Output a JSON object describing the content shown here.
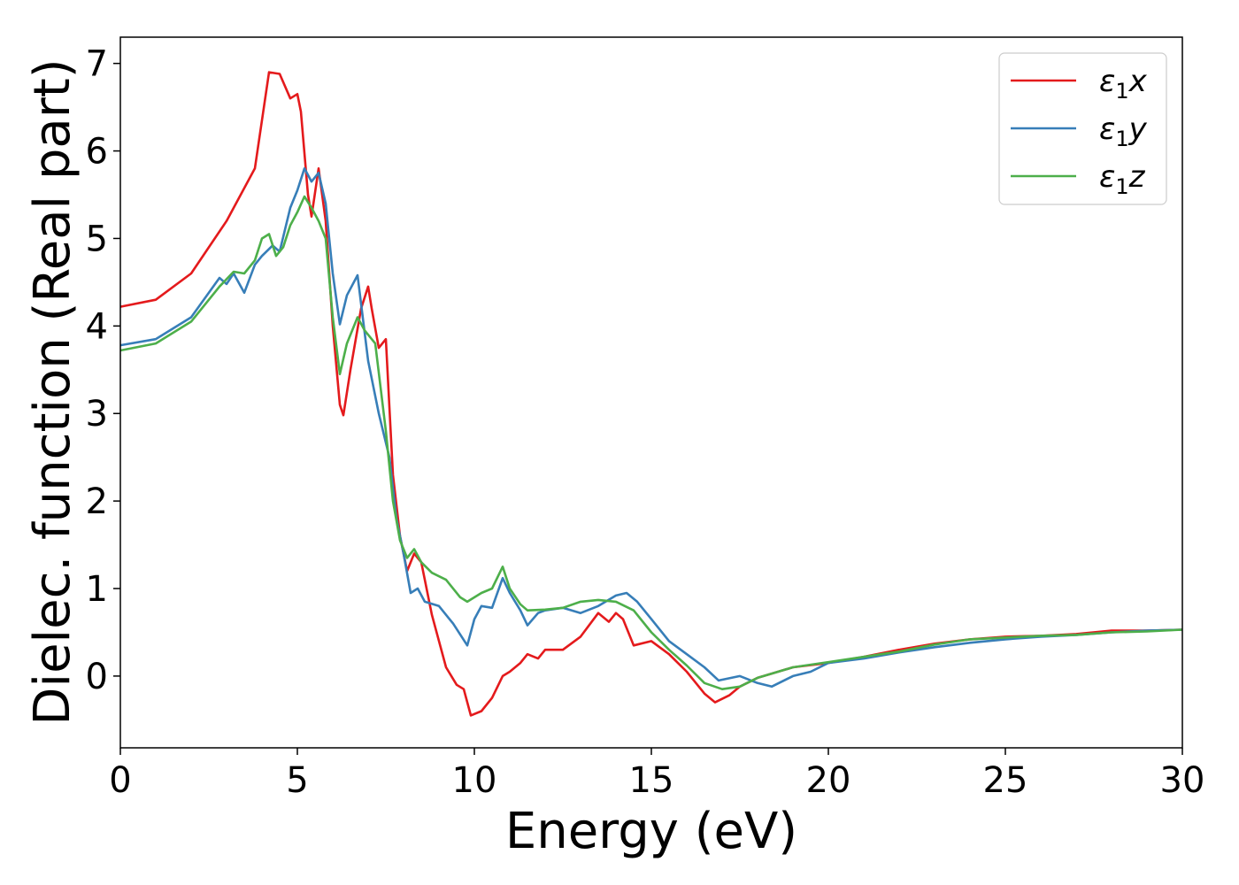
{
  "chart_data": {
    "type": "line",
    "xlabel": "Energy (eV)",
    "ylabel": "Dielec. function (Real part)",
    "xlim": [
      0,
      30
    ],
    "ylim": [
      -0.82,
      7.3
    ],
    "xticks": [
      0,
      5,
      10,
      15,
      20,
      25,
      30
    ],
    "yticks": [
      0,
      1,
      2,
      3,
      4,
      5,
      6,
      7
    ],
    "grid": false,
    "legend_position": "top-right",
    "series": [
      {
        "name": "ε₁x",
        "legend_base": "ε",
        "legend_sub": "1",
        "legend_var": "x",
        "color": "#e41a1c",
        "points": [
          [
            0,
            4.22
          ],
          [
            1,
            4.3
          ],
          [
            2,
            4.6
          ],
          [
            3,
            5.2
          ],
          [
            3.8,
            5.8
          ],
          [
            4.2,
            6.9
          ],
          [
            4.5,
            6.88
          ],
          [
            4.8,
            6.6
          ],
          [
            5.0,
            6.65
          ],
          [
            5.1,
            6.45
          ],
          [
            5.3,
            5.5
          ],
          [
            5.4,
            5.25
          ],
          [
            5.6,
            5.8
          ],
          [
            5.8,
            5.2
          ],
          [
            6.0,
            4.0
          ],
          [
            6.2,
            3.1
          ],
          [
            6.3,
            2.98
          ],
          [
            6.5,
            3.5
          ],
          [
            6.8,
            4.2
          ],
          [
            7.0,
            4.45
          ],
          [
            7.1,
            4.2
          ],
          [
            7.3,
            3.75
          ],
          [
            7.5,
            3.85
          ],
          [
            7.7,
            2.3
          ],
          [
            7.9,
            1.6
          ],
          [
            8.1,
            1.2
          ],
          [
            8.3,
            1.4
          ],
          [
            8.5,
            1.3
          ],
          [
            8.8,
            0.7
          ],
          [
            9.2,
            0.1
          ],
          [
            9.5,
            -0.1
          ],
          [
            9.7,
            -0.15
          ],
          [
            9.9,
            -0.45
          ],
          [
            10.2,
            -0.4
          ],
          [
            10.5,
            -0.25
          ],
          [
            10.8,
            0
          ],
          [
            11.0,
            0.05
          ],
          [
            11.3,
            0.15
          ],
          [
            11.5,
            0.25
          ],
          [
            11.8,
            0.2
          ],
          [
            12.0,
            0.3
          ],
          [
            12.5,
            0.3
          ],
          [
            13.0,
            0.45
          ],
          [
            13.5,
            0.72
          ],
          [
            13.8,
            0.62
          ],
          [
            14.0,
            0.72
          ],
          [
            14.2,
            0.65
          ],
          [
            14.5,
            0.35
          ],
          [
            15.0,
            0.4
          ],
          [
            15.5,
            0.25
          ],
          [
            16.0,
            0.05
          ],
          [
            16.5,
            -0.2
          ],
          [
            16.8,
            -0.3
          ],
          [
            17.2,
            -0.22
          ],
          [
            17.5,
            -0.12
          ],
          [
            18,
            -0.02
          ],
          [
            19,
            0.1
          ],
          [
            20,
            0.15
          ],
          [
            21,
            0.22
          ],
          [
            22,
            0.3
          ],
          [
            23,
            0.37
          ],
          [
            24,
            0.42
          ],
          [
            25,
            0.45
          ],
          [
            26,
            0.46
          ],
          [
            27,
            0.48
          ],
          [
            28,
            0.52
          ],
          [
            29,
            0.52
          ],
          [
            30,
            0.53
          ]
        ]
      },
      {
        "name": "ε₁y",
        "legend_base": "ε",
        "legend_sub": "1",
        "legend_var": "y",
        "color": "#377eb8",
        "points": [
          [
            0,
            3.78
          ],
          [
            1,
            3.85
          ],
          [
            2,
            4.1
          ],
          [
            2.8,
            4.55
          ],
          [
            3.0,
            4.48
          ],
          [
            3.2,
            4.6
          ],
          [
            3.5,
            4.38
          ],
          [
            3.8,
            4.7
          ],
          [
            4.0,
            4.8
          ],
          [
            4.3,
            4.92
          ],
          [
            4.5,
            4.85
          ],
          [
            4.8,
            5.35
          ],
          [
            5.0,
            5.55
          ],
          [
            5.2,
            5.8
          ],
          [
            5.4,
            5.65
          ],
          [
            5.6,
            5.75
          ],
          [
            5.8,
            5.4
          ],
          [
            6.0,
            4.6
          ],
          [
            6.2,
            4.02
          ],
          [
            6.4,
            4.35
          ],
          [
            6.7,
            4.58
          ],
          [
            7.0,
            3.6
          ],
          [
            7.3,
            3.0
          ],
          [
            7.6,
            2.5
          ],
          [
            7.8,
            1.8
          ],
          [
            8.0,
            1.4
          ],
          [
            8.2,
            0.95
          ],
          [
            8.4,
            1.0
          ],
          [
            8.6,
            0.85
          ],
          [
            9.0,
            0.8
          ],
          [
            9.4,
            0.6
          ],
          [
            9.8,
            0.35
          ],
          [
            10.0,
            0.65
          ],
          [
            10.2,
            0.8
          ],
          [
            10.5,
            0.78
          ],
          [
            10.8,
            1.12
          ],
          [
            11.0,
            0.95
          ],
          [
            11.3,
            0.75
          ],
          [
            11.5,
            0.58
          ],
          [
            11.8,
            0.72
          ],
          [
            12.0,
            0.75
          ],
          [
            12.5,
            0.78
          ],
          [
            13.0,
            0.72
          ],
          [
            13.5,
            0.8
          ],
          [
            14.0,
            0.92
          ],
          [
            14.3,
            0.95
          ],
          [
            14.6,
            0.85
          ],
          [
            15.0,
            0.65
          ],
          [
            15.5,
            0.4
          ],
          [
            16.0,
            0.25
          ],
          [
            16.5,
            0.1
          ],
          [
            16.9,
            -0.05
          ],
          [
            17.5,
            0
          ],
          [
            18,
            -0.08
          ],
          [
            18.4,
            -0.12
          ],
          [
            19,
            0
          ],
          [
            19.5,
            0.05
          ],
          [
            20,
            0.15
          ],
          [
            21,
            0.2
          ],
          [
            22,
            0.27
          ],
          [
            23,
            0.33
          ],
          [
            24,
            0.38
          ],
          [
            25,
            0.42
          ],
          [
            26,
            0.45
          ],
          [
            27,
            0.47
          ],
          [
            28,
            0.5
          ],
          [
            29,
            0.52
          ],
          [
            30,
            0.53
          ]
        ]
      },
      {
        "name": "ε₁z",
        "legend_base": "ε",
        "legend_sub": "1",
        "legend_var": "z",
        "color": "#4daf4a",
        "points": [
          [
            0,
            3.72
          ],
          [
            1,
            3.8
          ],
          [
            2,
            4.05
          ],
          [
            2.8,
            4.45
          ],
          [
            3.2,
            4.62
          ],
          [
            3.5,
            4.6
          ],
          [
            3.8,
            4.75
          ],
          [
            4.0,
            5.0
          ],
          [
            4.2,
            5.05
          ],
          [
            4.4,
            4.8
          ],
          [
            4.6,
            4.9
          ],
          [
            4.8,
            5.15
          ],
          [
            5.0,
            5.3
          ],
          [
            5.2,
            5.48
          ],
          [
            5.4,
            5.35
          ],
          [
            5.6,
            5.2
          ],
          [
            5.8,
            5.0
          ],
          [
            6.0,
            4.1
          ],
          [
            6.2,
            3.45
          ],
          [
            6.4,
            3.8
          ],
          [
            6.7,
            4.1
          ],
          [
            6.9,
            3.95
          ],
          [
            7.2,
            3.8
          ],
          [
            7.5,
            2.8
          ],
          [
            7.7,
            2.0
          ],
          [
            7.9,
            1.55
          ],
          [
            8.1,
            1.35
          ],
          [
            8.3,
            1.45
          ],
          [
            8.5,
            1.3
          ],
          [
            8.8,
            1.18
          ],
          [
            9.2,
            1.1
          ],
          [
            9.6,
            0.9
          ],
          [
            9.8,
            0.85
          ],
          [
            10.2,
            0.95
          ],
          [
            10.5,
            1.0
          ],
          [
            10.8,
            1.25
          ],
          [
            11.0,
            1.0
          ],
          [
            11.3,
            0.82
          ],
          [
            11.5,
            0.75
          ],
          [
            12.0,
            0.76
          ],
          [
            12.5,
            0.78
          ],
          [
            13.0,
            0.85
          ],
          [
            13.5,
            0.87
          ],
          [
            14.0,
            0.85
          ],
          [
            14.5,
            0.75
          ],
          [
            15.0,
            0.5
          ],
          [
            15.5,
            0.3
          ],
          [
            16.0,
            0.12
          ],
          [
            16.5,
            -0.08
          ],
          [
            17.0,
            -0.15
          ],
          [
            17.5,
            -0.12
          ],
          [
            18,
            -0.02
          ],
          [
            19,
            0.1
          ],
          [
            20,
            0.16
          ],
          [
            21,
            0.22
          ],
          [
            22,
            0.28
          ],
          [
            23,
            0.36
          ],
          [
            24,
            0.42
          ],
          [
            25,
            0.44
          ],
          [
            26,
            0.46
          ],
          [
            27,
            0.47
          ],
          [
            28,
            0.5
          ],
          [
            29,
            0.51
          ],
          [
            30,
            0.53
          ]
        ]
      }
    ]
  }
}
